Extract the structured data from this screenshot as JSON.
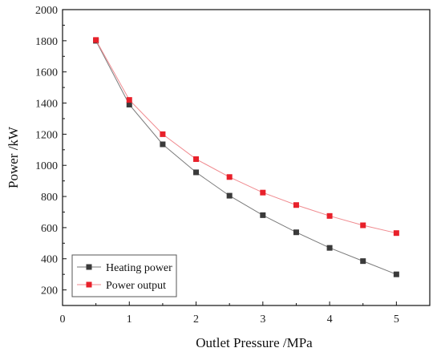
{
  "chart_data": {
    "type": "line",
    "xlabel": "Outlet Pressure  /MPa",
    "ylabel": "Power   /kW",
    "xlim": [
      0,
      5.5
    ],
    "ylim": [
      100,
      2000
    ],
    "xticks": [
      0,
      1,
      2,
      3,
      4,
      5
    ],
    "yticks": [
      200,
      400,
      600,
      800,
      1000,
      1200,
      1400,
      1600,
      1800,
      2000
    ],
    "legend_position": "bottom-left",
    "grid": false,
    "series": [
      {
        "name": "Heating power",
        "color": "#3a3a3a",
        "line_color": "#7a7a7a",
        "marker": "square",
        "x": [
          0.5,
          1.0,
          1.5,
          2.0,
          2.5,
          3.0,
          3.5,
          4.0,
          4.5,
          5.0
        ],
        "y": [
          1800,
          1390,
          1135,
          955,
          805,
          680,
          570,
          470,
          385,
          300
        ]
      },
      {
        "name": "Power output",
        "color": "#e8202a",
        "line_color": "#f08a8f",
        "marker": "square",
        "x": [
          0.5,
          1.0,
          1.5,
          2.0,
          2.5,
          3.0,
          3.5,
          4.0,
          4.5,
          5.0
        ],
        "y": [
          1805,
          1420,
          1200,
          1040,
          925,
          825,
          745,
          675,
          615,
          565
        ]
      }
    ]
  }
}
